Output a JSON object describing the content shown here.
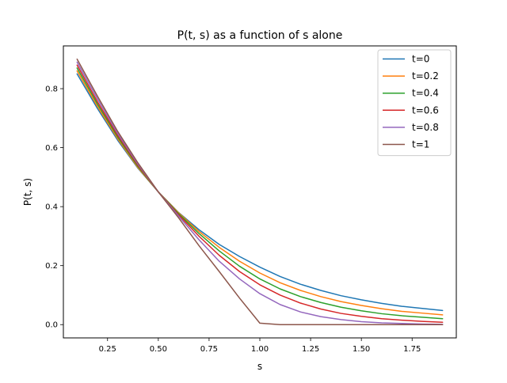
{
  "chart_data": {
    "type": "line",
    "title": "P(t, s) as a function of s alone",
    "xlabel": "s",
    "ylabel": "P(t, s)",
    "xlim": [
      0.0325,
      1.9675
    ],
    "ylim": [
      -0.045,
      0.945
    ],
    "xticks": [
      0.25,
      0.5,
      0.75,
      1.0,
      1.25,
      1.5,
      1.75
    ],
    "xtick_labels": [
      "0.25",
      "0.50",
      "0.75",
      "1.00",
      "1.25",
      "1.50",
      "1.75"
    ],
    "yticks": [
      0.0,
      0.2,
      0.4,
      0.6,
      0.8
    ],
    "ytick_labels": [
      "0.0",
      "0.2",
      "0.4",
      "0.6",
      "0.8"
    ],
    "grid": false,
    "legend_position": "top-right",
    "x": [
      0.1,
      0.2,
      0.3,
      0.4,
      0.5,
      0.6,
      0.7,
      0.8,
      0.9,
      1.0,
      1.1,
      1.2,
      1.3,
      1.4,
      1.5,
      1.6,
      1.7,
      1.8,
      1.9
    ],
    "series": [
      {
        "name": "t=0",
        "color": "#1f77b4",
        "values": [
          0.85,
          0.733,
          0.625,
          0.53,
          0.45,
          0.38,
          0.322,
          0.272,
          0.231,
          0.195,
          0.163,
          0.137,
          0.116,
          0.098,
          0.084,
          0.072,
          0.062,
          0.055,
          0.048
        ]
      },
      {
        "name": "t=0.2",
        "color": "#ff7f0e",
        "values": [
          0.86,
          0.74,
          0.63,
          0.532,
          0.45,
          0.379,
          0.316,
          0.262,
          0.215,
          0.175,
          0.142,
          0.116,
          0.095,
          0.078,
          0.065,
          0.054,
          0.045,
          0.039,
          0.033
        ]
      },
      {
        "name": "t=0.4",
        "color": "#2ca02c",
        "values": [
          0.87,
          0.748,
          0.636,
          0.536,
          0.45,
          0.376,
          0.309,
          0.25,
          0.198,
          0.155,
          0.121,
          0.095,
          0.075,
          0.059,
          0.047,
          0.037,
          0.03,
          0.025,
          0.02
        ]
      },
      {
        "name": "t=0.6",
        "color": "#d62728",
        "values": [
          0.88,
          0.756,
          0.642,
          0.54,
          0.45,
          0.372,
          0.3,
          0.235,
          0.18,
          0.135,
          0.1,
          0.073,
          0.053,
          0.038,
          0.028,
          0.02,
          0.015,
          0.011,
          0.008
        ]
      },
      {
        "name": "t=0.8",
        "color": "#9467bd",
        "values": [
          0.89,
          0.766,
          0.648,
          0.544,
          0.45,
          0.368,
          0.288,
          0.215,
          0.155,
          0.105,
          0.068,
          0.043,
          0.027,
          0.017,
          0.01,
          0.006,
          0.004,
          0.002,
          0.001
        ]
      },
      {
        "name": "t=1",
        "color": "#8c564b",
        "values": [
          0.9,
          0.775,
          0.655,
          0.548,
          0.45,
          0.362,
          0.268,
          0.18,
          0.09,
          0.005,
          0.0,
          0.0,
          0.0,
          0.0,
          0.0,
          0.0,
          0.0,
          0.0,
          0.0
        ]
      }
    ]
  }
}
